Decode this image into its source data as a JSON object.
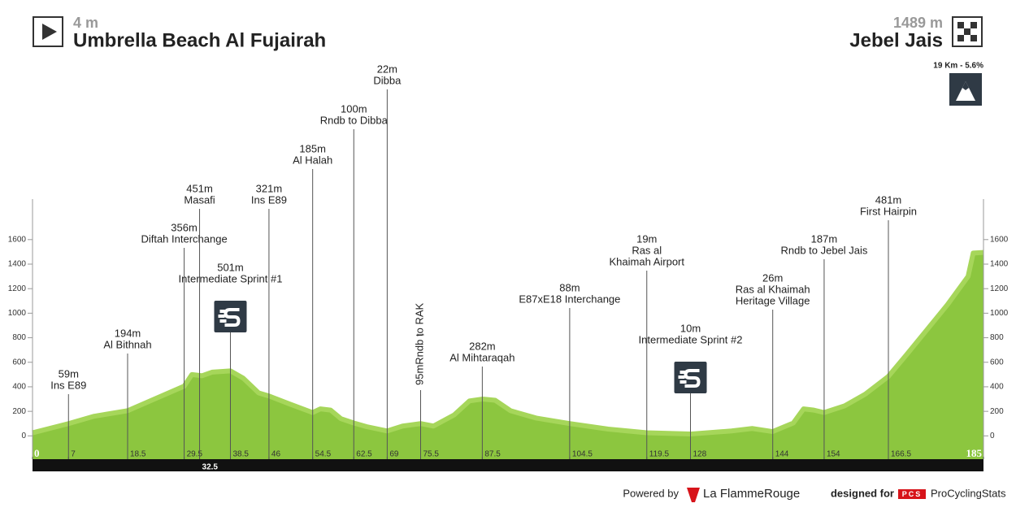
{
  "header": {
    "start_elevation": "4 m",
    "start_name": "Umbrella Beach Al Fujairah",
    "finish_elevation": "1489 m",
    "finish_name": "Jebel Jais",
    "climb": "19 Km - 5.6%"
  },
  "chart_data": {
    "type": "area",
    "color": "#8cc63f",
    "top_color": "#a6d65a",
    "xlim": [
      0,
      185
    ],
    "ylim": [
      -190,
      1930
    ],
    "xticks": [
      0,
      7,
      18.5,
      29.5,
      32.5,
      38.5,
      46,
      54.5,
      62.5,
      69,
      75.5,
      87.5,
      104.5,
      119.5,
      128,
      144,
      154,
      166.5,
      185
    ],
    "yticks": [
      0,
      200,
      400,
      600,
      800,
      1000,
      1200,
      1400,
      1600
    ],
    "profile": {
      "x": [
        0,
        7,
        12,
        18.5,
        24,
        29.5,
        31,
        33,
        35,
        38.5,
        41,
        44,
        46,
        50,
        54.5,
        56,
        58,
        60,
        62.5,
        65,
        69,
        72,
        75.5,
        78,
        82,
        85,
        87.5,
        90,
        93,
        98,
        104.5,
        112,
        119.5,
        128,
        136,
        140,
        144,
        148,
        150,
        152,
        154,
        158,
        162,
        166.5,
        170,
        174,
        178,
        182,
        183,
        185
      ],
      "values": [
        25,
        100,
        160,
        205,
        305,
        405,
        500,
        490,
        520,
        530,
        470,
        350,
        325,
        260,
        190,
        220,
        210,
        140,
        105,
        75,
        40,
        80,
        100,
        80,
        170,
        285,
        300,
        290,
        205,
        145,
        100,
        55,
        25,
        15,
        40,
        60,
        35,
        105,
        220,
        210,
        190,
        245,
        340,
        485,
        660,
        865,
        1070,
        1300,
        1490,
        1495
      ]
    },
    "waypoints": [
      {
        "x": 7,
        "value": 59,
        "value_label": "59m",
        "name": [
          "Ins E89"
        ]
      },
      {
        "x": 18.5,
        "value": 194,
        "value_label": "194m",
        "name": [
          "Al Bithnah"
        ]
      },
      {
        "x": 29.5,
        "value": 356,
        "value_label": "356m",
        "name": [
          "Diftah Interchange"
        ]
      },
      {
        "x": 32.5,
        "value": 451,
        "value_label": "451m",
        "name": [
          "Masafi"
        ]
      },
      {
        "x": 38.5,
        "value": 501,
        "value_label": "501m",
        "name": [
          "Intermediate Sprint #1"
        ],
        "sprint": true
      },
      {
        "x": 46,
        "value": 321,
        "value_label": "321m",
        "name": [
          "Ins E89"
        ]
      },
      {
        "x": 54.5,
        "value": 185,
        "value_label": "185m",
        "name": [
          "Al Halah"
        ]
      },
      {
        "x": 62.5,
        "value": 100,
        "value_label": "100m",
        "name": [
          "Rndb to Dibba"
        ]
      },
      {
        "x": 69,
        "value": 22,
        "value_label": "22m",
        "name": [
          "Dibba"
        ]
      },
      {
        "x": 75.5,
        "value": 95,
        "value_label": "95m",
        "name": [
          "Rndb to RAK"
        ],
        "rotated": true
      },
      {
        "x": 87.5,
        "value": 282,
        "value_label": "282m",
        "name": [
          "Al Mihtaraqah"
        ]
      },
      {
        "x": 104.5,
        "value": 88,
        "value_label": "88m",
        "name": [
          "E87xE18 Interchange"
        ]
      },
      {
        "x": 119.5,
        "value": 19,
        "value_label": "19m",
        "name": [
          "Ras al",
          "Khaimah Airport"
        ]
      },
      {
        "x": 128,
        "value": 10,
        "value_label": "10m",
        "name": [
          "Intermediate Sprint #2"
        ],
        "sprint": true
      },
      {
        "x": 144,
        "value": 26,
        "value_label": "26m",
        "name": [
          "Ras al Khaimah",
          "Heritage Village"
        ]
      },
      {
        "x": 154,
        "value": 187,
        "value_label": "187m",
        "name": [
          "Rndb to Jebel Jais"
        ]
      },
      {
        "x": 166.5,
        "value": 481,
        "value_label": "481m",
        "name": [
          "First Hairpin"
        ]
      }
    ]
  },
  "footer": {
    "powered": "Powered by",
    "brand": "La FlammeRouge",
    "designed": "designed for",
    "pcs": "PCS",
    "site": "ProCyclingStats"
  }
}
